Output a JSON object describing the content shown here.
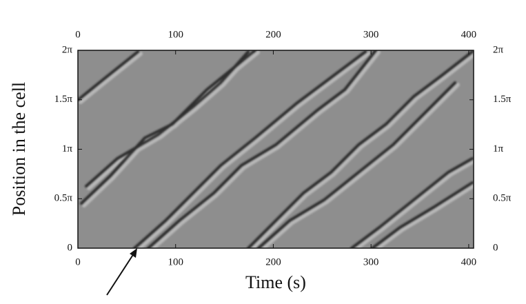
{
  "chart_data": {
    "type": "spacetime",
    "x_label": "Time (s)",
    "y_label": "Position in the cell",
    "xlim": [
      0,
      405
    ],
    "xticks": [
      0,
      100,
      200,
      300,
      400
    ],
    "ylim": [
      0,
      2
    ],
    "yticks": [
      0,
      {
        "value": 0.5,
        "label": "0.5π"
      },
      {
        "value": 1,
        "label": "1π"
      },
      {
        "value": 1.5,
        "label": "1.5π"
      },
      {
        "value": 2,
        "label": "2π"
      }
    ],
    "background": "#8e8e8e"
  }
}
